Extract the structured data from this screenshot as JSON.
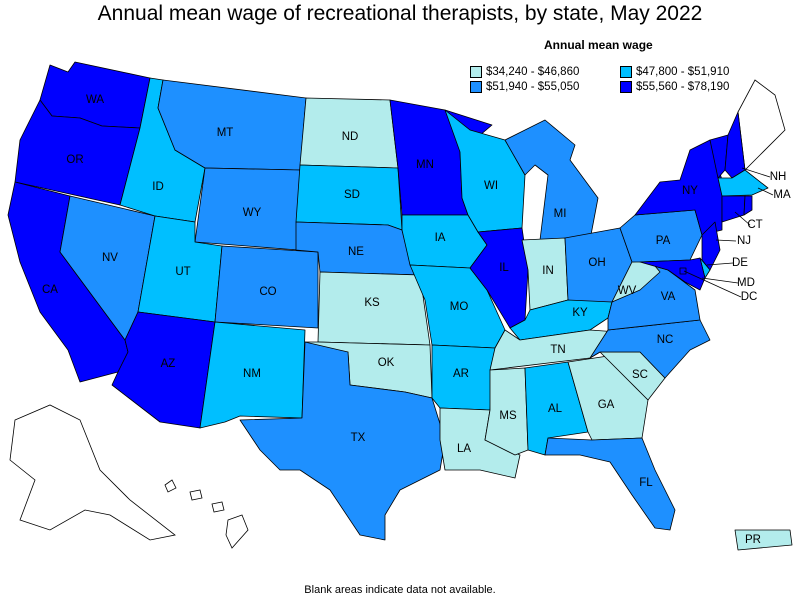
{
  "title": "Annual mean wage of recreational therapists, by state, May 2022",
  "legend": {
    "title": "Annual mean wage",
    "items": [
      {
        "label": "$34,240 - $46,860",
        "color": "#b3ecec"
      },
      {
        "label": "$47,800 - $51,910",
        "color": "#00bfff"
      },
      {
        "label": "$51,940 - $55,050",
        "color": "#1e90ff"
      },
      {
        "label": "$55,560 - $78,190",
        "color": "#0000ff"
      }
    ]
  },
  "footnote": "Blank areas indicate data not available.",
  "states": [
    {
      "abbr": "WA",
      "bin": 3
    },
    {
      "abbr": "OR",
      "bin": 3
    },
    {
      "abbr": "CA",
      "bin": 3
    },
    {
      "abbr": "NV",
      "bin": 2
    },
    {
      "abbr": "ID",
      "bin": 1
    },
    {
      "abbr": "MT",
      "bin": 2
    },
    {
      "abbr": "WY",
      "bin": 2
    },
    {
      "abbr": "UT",
      "bin": 1
    },
    {
      "abbr": "AZ",
      "bin": 3
    },
    {
      "abbr": "CO",
      "bin": 2
    },
    {
      "abbr": "NM",
      "bin": 1
    },
    {
      "abbr": "ND",
      "bin": 0
    },
    {
      "abbr": "SD",
      "bin": 1
    },
    {
      "abbr": "NE",
      "bin": 2
    },
    {
      "abbr": "KS",
      "bin": 0
    },
    {
      "abbr": "OK",
      "bin": 0
    },
    {
      "abbr": "TX",
      "bin": 2
    },
    {
      "abbr": "MN",
      "bin": 3
    },
    {
      "abbr": "IA",
      "bin": 1
    },
    {
      "abbr": "MO",
      "bin": 1
    },
    {
      "abbr": "AR",
      "bin": 1
    },
    {
      "abbr": "LA",
      "bin": 0
    },
    {
      "abbr": "WI",
      "bin": 1
    },
    {
      "abbr": "IL",
      "bin": 3
    },
    {
      "abbr": "MI",
      "bin": 2
    },
    {
      "abbr": "IN",
      "bin": 0
    },
    {
      "abbr": "OH",
      "bin": 2
    },
    {
      "abbr": "KY",
      "bin": 1
    },
    {
      "abbr": "TN",
      "bin": 0
    },
    {
      "abbr": "MS",
      "bin": 0
    },
    {
      "abbr": "AL",
      "bin": 1
    },
    {
      "abbr": "GA",
      "bin": 0
    },
    {
      "abbr": "FL",
      "bin": 2
    },
    {
      "abbr": "SC",
      "bin": 0
    },
    {
      "abbr": "NC",
      "bin": 2
    },
    {
      "abbr": "VA",
      "bin": 2
    },
    {
      "abbr": "WV",
      "bin": 0
    },
    {
      "abbr": "PA",
      "bin": 2
    },
    {
      "abbr": "NY",
      "bin": 3
    },
    {
      "abbr": "VT",
      "bin": 3
    },
    {
      "abbr": "NH",
      "bin": 3
    },
    {
      "abbr": "MA",
      "bin": 1
    },
    {
      "abbr": "CT",
      "bin": 3
    },
    {
      "abbr": "RI",
      "bin": 3
    },
    {
      "abbr": "NJ",
      "bin": 3
    },
    {
      "abbr": "DE",
      "bin": 1
    },
    {
      "abbr": "MD",
      "bin": 3
    },
    {
      "abbr": "DC",
      "bin": 3
    },
    {
      "abbr": "PR",
      "bin": 0
    }
  ],
  "no_data": [
    "ME",
    "AK",
    "HI"
  ]
}
